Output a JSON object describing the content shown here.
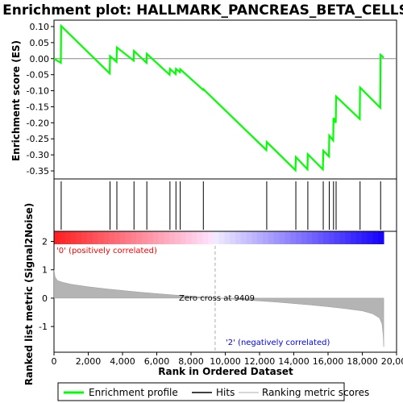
{
  "chart_data": [
    {
      "type": "line",
      "panel": "enrichment",
      "title": "Enrichment plot: HALLMARK_PANCREAS_BETA_CELLS",
      "ylabel": "Enrichment score (ES)",
      "xlim": [
        0,
        20000
      ],
      "ylim": [
        -0.37,
        0.115
      ],
      "yticks": [
        "0.10",
        "0.05",
        "0.00",
        "-0.05",
        "-0.10",
        "-0.15",
        "-0.20",
        "-0.25",
        "-0.30",
        "-0.35"
      ],
      "ytick_values": [
        0.1,
        0.05,
        0.0,
        -0.05,
        -0.1,
        -0.15,
        -0.2,
        -0.25,
        -0.3,
        -0.35
      ],
      "series": [
        {
          "name": "Enrichment profile",
          "color": "#00ff00",
          "points": [
            [
              0,
              0.0
            ],
            [
              400,
              -0.013
            ],
            [
              420,
              0.102
            ],
            [
              3250,
              -0.046
            ],
            [
              3270,
              0.008
            ],
            [
              3650,
              -0.01
            ],
            [
              3670,
              0.035
            ],
            [
              4650,
              -0.006
            ],
            [
              4670,
              0.024
            ],
            [
              5400,
              -0.013
            ],
            [
              5420,
              0.015
            ],
            [
              6750,
              -0.05
            ],
            [
              6770,
              -0.032
            ],
            [
              7100,
              -0.048
            ],
            [
              7120,
              -0.032
            ],
            [
              7350,
              -0.042
            ],
            [
              7370,
              -0.033
            ],
            [
              8700,
              -0.097
            ],
            [
              8720,
              -0.095
            ],
            [
              12400,
              -0.285
            ],
            [
              12420,
              -0.26
            ],
            [
              14100,
              -0.348
            ],
            [
              14120,
              -0.307
            ],
            [
              14800,
              -0.345
            ],
            [
              14820,
              -0.298
            ],
            [
              15700,
              -0.345
            ],
            [
              15720,
              -0.287
            ],
            [
              16050,
              -0.305
            ],
            [
              16070,
              -0.24
            ],
            [
              16300,
              -0.255
            ],
            [
              16320,
              -0.185
            ],
            [
              16450,
              -0.2
            ],
            [
              16470,
              -0.118
            ],
            [
              17850,
              -0.188
            ],
            [
              17870,
              -0.09
            ],
            [
              19050,
              -0.153
            ],
            [
              19070,
              0.012
            ],
            [
              19250,
              0.003
            ]
          ]
        }
      ]
    },
    {
      "type": "hits",
      "panel": "hits",
      "series": [
        {
          "name": "Hits",
          "color": "#000000",
          "x": [
            420,
            3270,
            3670,
            4670,
            5420,
            6770,
            7120,
            7370,
            8720,
            12420,
            14120,
            14820,
            15720,
            16070,
            16320,
            16470,
            17870,
            19070
          ]
        }
      ]
    },
    {
      "type": "area",
      "panel": "ranked-metric",
      "ylabel": "Ranked list metric (Signal2Noise)",
      "xlabel": "Rank in Ordered Dataset",
      "xlim": [
        0,
        20000
      ],
      "ylim": [
        -1.85,
        2.3
      ],
      "xticks": [
        "0",
        "2,000",
        "4,000",
        "6,000",
        "8,000",
        "10,000",
        "12,000",
        "14,000",
        "16,000",
        "18,000",
        "20,000"
      ],
      "xtick_values": [
        0,
        2000,
        4000,
        6000,
        8000,
        10000,
        12000,
        14000,
        16000,
        18000,
        20000
      ],
      "yticks": [
        "2",
        "1",
        "0",
        "-1"
      ],
      "ytick_values": [
        2,
        1,
        0,
        -1
      ],
      "zero_cross": 9409,
      "zero_cross_label": "Zero cross at 9409",
      "positive_label": "'0' (positively correlated)",
      "negative_label": "'2' (negatively correlated)",
      "series": [
        {
          "name": "Ranking metric scores",
          "color": "#b0b0b0",
          "points": [
            [
              0,
              1.0
            ],
            [
              60,
              0.75
            ],
            [
              200,
              0.62
            ],
            [
              500,
              0.56
            ],
            [
              1000,
              0.49
            ],
            [
              2000,
              0.4
            ],
            [
              3000,
              0.33
            ],
            [
              4000,
              0.27
            ],
            [
              5000,
              0.21
            ],
            [
              6000,
              0.16
            ],
            [
              7000,
              0.11
            ],
            [
              8000,
              0.07
            ],
            [
              9409,
              0.0
            ],
            [
              10000,
              -0.02
            ],
            [
              11000,
              -0.06
            ],
            [
              12000,
              -0.1
            ],
            [
              13000,
              -0.14
            ],
            [
              14000,
              -0.19
            ],
            [
              15000,
              -0.24
            ],
            [
              16000,
              -0.3
            ],
            [
              17000,
              -0.37
            ],
            [
              18000,
              -0.45
            ],
            [
              18600,
              -0.55
            ],
            [
              19000,
              -0.7
            ],
            [
              19150,
              -0.9
            ],
            [
              19220,
              -1.3
            ],
            [
              19250,
              -1.72
            ]
          ]
        }
      ]
    }
  ],
  "legend": {
    "items": [
      {
        "label": "Enrichment profile",
        "color": "#00ff00"
      },
      {
        "label": "Hits",
        "color": "#000000"
      },
      {
        "label": "Ranking metric scores",
        "color": "#c8c8c8"
      }
    ]
  },
  "colors": {
    "positive_text": "#ff0000",
    "negative_text": "#0000ff",
    "zero_text": "#000000"
  }
}
